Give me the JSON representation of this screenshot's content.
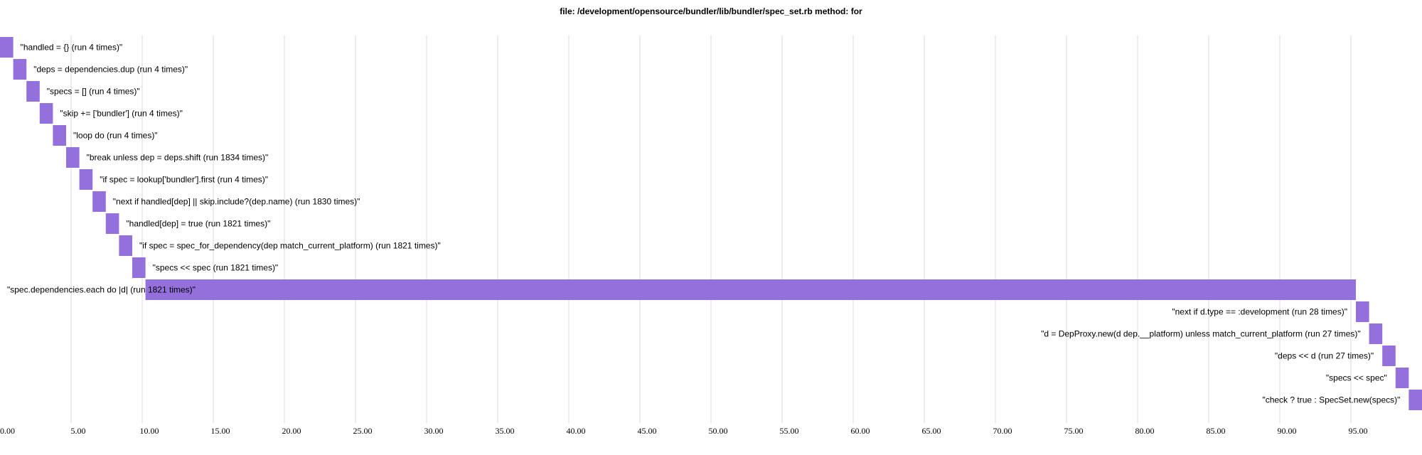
{
  "chart_data": {
    "type": "bar",
    "orientation": "horizontal-gantt",
    "title": "file: /development/opensource/bundler/lib/bundler/spec_set.rb method: for",
    "xlabel": "",
    "ylabel": "",
    "xlim": [
      0,
      100
    ],
    "grid": true,
    "bar_color": "#9370db",
    "x_ticks": [
      "0.00",
      "5.00",
      "10.00",
      "15.00",
      "20.00",
      "25.00",
      "30.00",
      "35.00",
      "40.00",
      "45.00",
      "50.00",
      "55.00",
      "60.00",
      "65.00",
      "70.00",
      "75.00",
      "80.00",
      "85.00",
      "90.00",
      "95.00"
    ],
    "x_tick_values": [
      0,
      5,
      10,
      15,
      20,
      25,
      30,
      35,
      40,
      45,
      50,
      55,
      60,
      65,
      70,
      75,
      80,
      85,
      90,
      95
    ],
    "bars": [
      {
        "label": "\"handled = {} (run 4 times)\"",
        "start": 0.0,
        "value": 0.93
      },
      {
        "label": "\"deps = dependencies.dup (run 4 times)\"",
        "start": 0.93,
        "value": 0.93
      },
      {
        "label": "\"specs = [] (run 4 times)\"",
        "start": 1.86,
        "value": 0.93
      },
      {
        "label": "\"skip += ['bundler'] (run 4 times)\"",
        "start": 2.79,
        "value": 0.93
      },
      {
        "label": "\"loop do (run 4 times)\"",
        "start": 3.72,
        "value": 0.93
      },
      {
        "label": "\"break unless dep = deps.shift (run 1834 times)\"",
        "start": 4.65,
        "value": 0.93
      },
      {
        "label": "\"if spec = lookup['bundler'].first (run 4 times)\"",
        "start": 5.58,
        "value": 0.93
      },
      {
        "label": "\"next if handled[dep] || skip.include?(dep.name) (run 1830 times)\"",
        "start": 6.51,
        "value": 0.93
      },
      {
        "label": "\"handled[dep] = true (run 1821 times)\"",
        "start": 7.44,
        "value": 0.93
      },
      {
        "label": "\"if spec = spec_for_dependency(dep match_current_platform) (run 1821 times)\"",
        "start": 8.37,
        "value": 0.93
      },
      {
        "label": "\"specs << spec (run 1821 times)\"",
        "start": 9.3,
        "value": 0.93
      },
      {
        "label": "\"spec.dependencies.each do |d| (run 1821 times)\"",
        "start": 10.23,
        "value": 85.12
      },
      {
        "label": "\"next if d.type == :development (run 28 times)\"",
        "start": 95.35,
        "value": 0.93
      },
      {
        "label": "\"d = DepProxy.new(d dep.__platform) unless match_current_platform (run 27 times)\"",
        "start": 96.28,
        "value": 0.93
      },
      {
        "label": "\"deps << d (run 27 times)\"",
        "start": 97.21,
        "value": 0.93
      },
      {
        "label": "\"specs << spec\"",
        "start": 98.14,
        "value": 0.93
      },
      {
        "label": "\"check ? true : SpecSet.new(specs)\"",
        "start": 99.07,
        "value": 0.93
      }
    ]
  }
}
